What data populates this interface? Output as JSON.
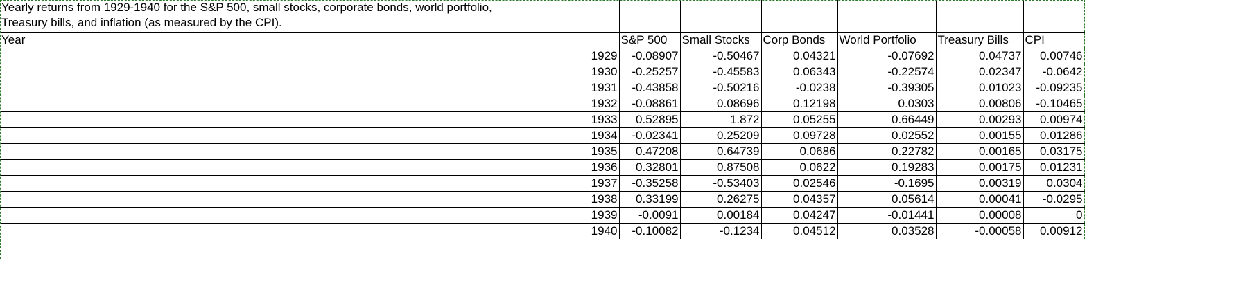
{
  "title": "Yearly returns from 1929-1940 for the S&P 500, small stocks, corporate bonds, world portfolio, Treasury bills, and inflation (as measured by the CPI).",
  "title_lines": [
    "Yearly returns from 1929-1940 for the S&P 500, small stocks, corporate bonds, world portfolio,",
    "Treasury bills, and inflation (as measured by the CPI)."
  ],
  "headers": [
    "Year",
    "S&P 500",
    "Small Stocks",
    "Corp Bonds",
    "World Portfolio",
    "Treasury Bills",
    "CPI"
  ],
  "rows": [
    [
      "1929",
      "-0.08907",
      "-0.50467",
      "0.04321",
      "-0.07692",
      "0.04737",
      "0.00746"
    ],
    [
      "1930",
      "-0.25257",
      "-0.45583",
      "0.06343",
      "-0.22574",
      "0.02347",
      "-0.0642"
    ],
    [
      "1931",
      "-0.43858",
      "-0.50216",
      "-0.0238",
      "-0.39305",
      "0.01023",
      "-0.09235"
    ],
    [
      "1932",
      "-0.08861",
      "0.08696",
      "0.12198",
      "0.0303",
      "0.00806",
      "-0.10465"
    ],
    [
      "1933",
      "0.52895",
      "1.872",
      "0.05255",
      "0.66449",
      "0.00293",
      "0.00974"
    ],
    [
      "1934",
      "-0.02341",
      "0.25209",
      "0.09728",
      "0.02552",
      "0.00155",
      "0.01286"
    ],
    [
      "1935",
      "0.47208",
      "0.64739",
      "0.0686",
      "0.22782",
      "0.00165",
      "0.03175"
    ],
    [
      "1936",
      "0.32801",
      "0.87508",
      "0.0622",
      "0.19283",
      "0.00175",
      "0.01231"
    ],
    [
      "1937",
      "-0.35258",
      "-0.53403",
      "0.02546",
      "-0.1695",
      "0.00319",
      "0.0304"
    ],
    [
      "1938",
      "0.33199",
      "0.26275",
      "0.04357",
      "0.05614",
      "0.00041",
      "-0.0295"
    ],
    [
      "1939",
      "-0.0091",
      "0.00184",
      "0.04247",
      "-0.01441",
      "0.00008",
      "0"
    ],
    [
      "1940",
      "-0.10082",
      "-0.1234",
      "0.04512",
      "0.03528",
      "-0.00058",
      "0.00912"
    ]
  ],
  "colors": {
    "selection_border": "#2a7a2a",
    "grid": "#000000"
  }
}
